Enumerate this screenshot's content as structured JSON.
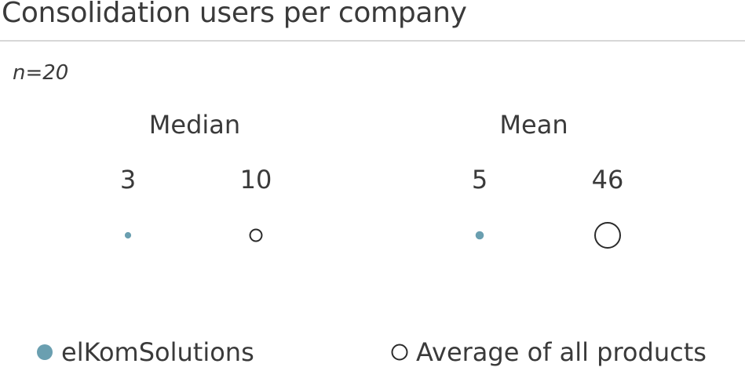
{
  "title": "Consolidation users per company",
  "sample_size": "n=20",
  "chart_data": {
    "type": "scatter",
    "title": "Consolidation users per company",
    "groups": [
      {
        "label": "Median",
        "items": [
          {
            "series": "elKomSolutions",
            "value": 3,
            "label": "3"
          },
          {
            "series": "Average of all products",
            "value": 10,
            "label": "10"
          }
        ]
      },
      {
        "label": "Mean",
        "items": [
          {
            "series": "elKomSolutions",
            "value": 5,
            "label": "5"
          },
          {
            "series": "Average of all products",
            "value": 46,
            "label": "46"
          }
        ]
      }
    ],
    "series": [
      {
        "name": "elKomSolutions",
        "color": "#6a9fb0",
        "marker": "filled-circle"
      },
      {
        "name": "Average of all products",
        "color": "#2b2b2b",
        "marker": "open-circle"
      }
    ],
    "legend_position": "bottom"
  }
}
